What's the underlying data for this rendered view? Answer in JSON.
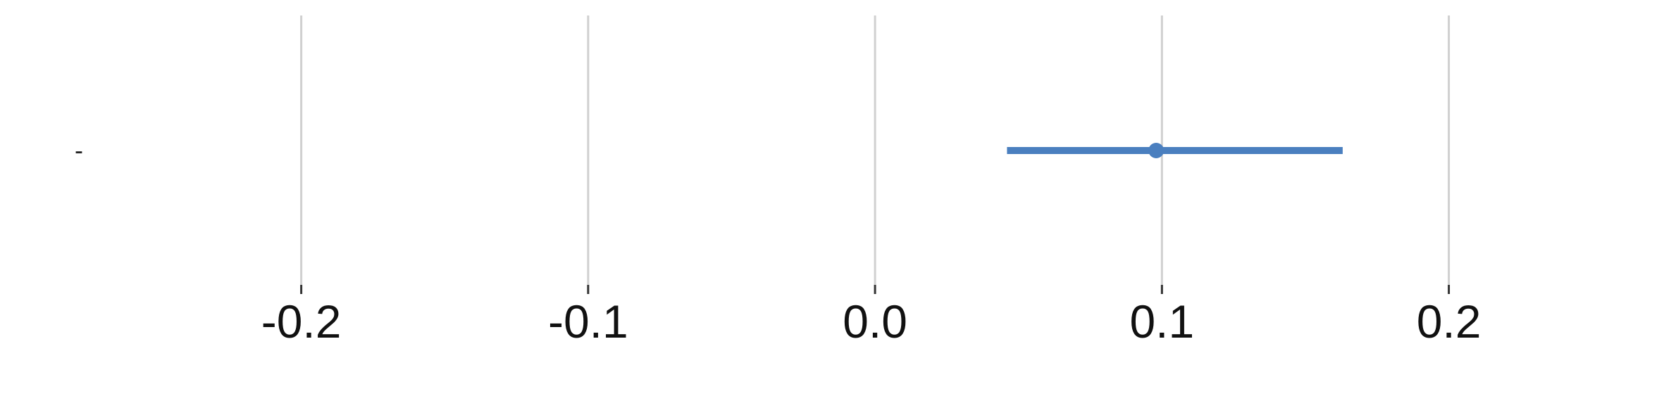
{
  "chart_data": {
    "type": "scatter",
    "title": "",
    "xlabel": "",
    "ylabel": "",
    "xlim": [
      -0.305,
      0.275
    ],
    "x_ticks": [
      -0.2,
      -0.1,
      0.0,
      0.1,
      0.2
    ],
    "x_tick_labels": [
      "-0.2",
      "-0.1",
      "0.0",
      "0.1",
      "0.2"
    ],
    "grid": "vertical",
    "legend": "none",
    "categories": [
      "-"
    ],
    "series": [
      {
        "estimate": [
          0.098
        ],
        "ci_low": [
          0.046
        ],
        "ci_high": [
          0.163
        ],
        "color": "#4a7fbf"
      }
    ]
  }
}
